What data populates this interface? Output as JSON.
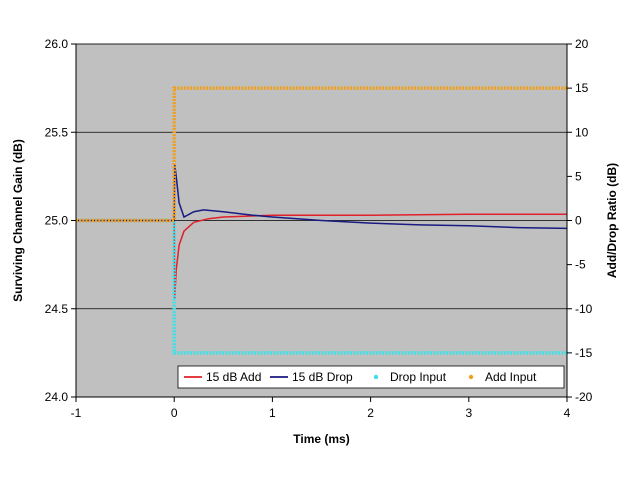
{
  "chart_data": {
    "type": "line",
    "title": "",
    "xlabel": "Time (ms)",
    "ylabel_left": "Surviving Channel Gain (dB)",
    "ylabel_right": "Add/Drop Ratio (dB)",
    "xlim": [
      -1,
      4
    ],
    "ylim_left": [
      24.0,
      26.0
    ],
    "ylim_right": [
      -20,
      20
    ],
    "x_ticks": [
      "-1",
      "0",
      "1",
      "2",
      "3",
      "4"
    ],
    "y_left_ticks": [
      "24.0",
      "24.5",
      "25.0",
      "25.5",
      "26.0"
    ],
    "y_right_ticks": [
      "-20",
      "-15",
      "-10",
      "-5",
      "0",
      "5",
      "10",
      "15",
      "20"
    ],
    "grid": "horizontal",
    "legend_position": "bottom-right",
    "colors": {
      "plot_bg": "#c0c0c0",
      "add": "#e0202a",
      "drop": "#1a1a80",
      "drop_input": "#40e0e8",
      "add_input": "#f0a020"
    },
    "series": [
      {
        "name": "15 dB Add",
        "axis": "left",
        "style": "line",
        "x": [
          -1,
          -0.5,
          -0.02,
          0,
          0.005,
          0.02,
          0.05,
          0.1,
          0.2,
          0.35,
          0.5,
          1,
          2,
          3,
          4
        ],
        "y": [
          25.0,
          25.0,
          25.0,
          25.0,
          24.56,
          24.72,
          24.86,
          24.94,
          24.99,
          25.01,
          25.02,
          25.03,
          25.03,
          25.035,
          25.035
        ]
      },
      {
        "name": "15 dB Drop",
        "axis": "left",
        "style": "line",
        "x": [
          -1,
          -0.5,
          -0.02,
          0,
          0.005,
          0.02,
          0.05,
          0.1,
          0.2,
          0.3,
          0.5,
          0.8,
          1,
          1.5,
          2,
          2.5,
          3,
          3.5,
          4
        ],
        "y": [
          25.0,
          25.0,
          25.0,
          25.0,
          25.32,
          25.25,
          25.1,
          25.02,
          25.05,
          25.06,
          25.05,
          25.03,
          25.02,
          25.0,
          24.985,
          24.975,
          24.97,
          24.96,
          24.955
        ]
      },
      {
        "name": "Drop Input",
        "axis": "right",
        "style": "markers",
        "x": [
          -1,
          0,
          0,
          4
        ],
        "y": [
          0,
          0,
          -15,
          -15
        ]
      },
      {
        "name": "Add Input",
        "axis": "right",
        "style": "markers",
        "x": [
          -1,
          0,
          0,
          4
        ],
        "y": [
          0,
          0,
          15,
          15
        ]
      }
    ]
  }
}
